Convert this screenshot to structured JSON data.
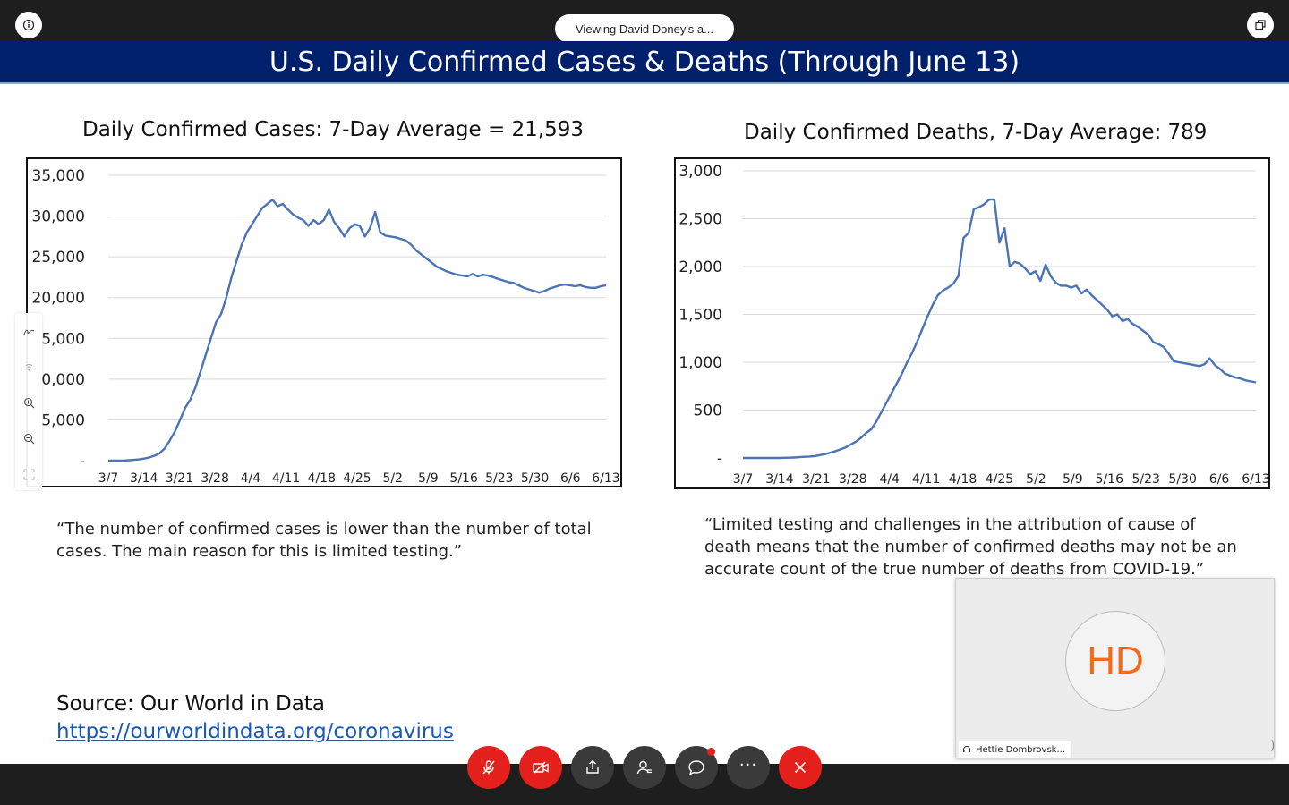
{
  "topbar": {
    "info_icon": "info-icon",
    "viewing_text": "Viewing David Doney's a...",
    "popout_icon": "popout-icon"
  },
  "slide": {
    "title": "U.S. Daily Confirmed Cases & Deaths (Through June 13)",
    "cases_quote": "“The number of confirmed cases is lower than the number of total cases.  The main reason for this is limited testing.”",
    "deaths_quote": "“Limited testing and challenges in the attribution of cause of death means that the number of confirmed deaths may not be an accurate count of the true number of deaths from COVID-19.”",
    "source_label": "Source:  Our World in Data",
    "source_link": "https://ourworldindata.org/coronavirus"
  },
  "chart_data": [
    {
      "type": "line",
      "title": "Daily Confirmed Cases: 7-Day Average = 21,593",
      "x_tick_labels": [
        "3/7",
        "3/14",
        "3/21",
        "3/28",
        "4/4",
        "4/11",
        "4/18",
        "4/25",
        "5/2",
        "5/9",
        "5/16",
        "5/23",
        "5/30",
        "6/6",
        "6/13"
      ],
      "y_tick_labels": [
        "-",
        "5,000",
        "0,000",
        "5,000",
        "20,000",
        "25,000",
        "30,000",
        "35,000"
      ],
      "ylim": [
        0,
        35000
      ],
      "grid": true,
      "color": "#4a74b5",
      "series": [
        {
          "values": [
            0,
            0,
            0,
            10,
            50,
            100,
            150,
            250,
            400,
            600,
            900,
            1500,
            2500,
            3600,
            5000,
            6500,
            7500,
            9000,
            11000,
            13000,
            15000,
            17000,
            18000,
            20000,
            22500,
            24500,
            26500,
            28000,
            29000,
            30000,
            31000,
            31500,
            32000,
            31200,
            31500,
            30800,
            30200,
            29800,
            29500,
            28800,
            29500,
            29000,
            29500,
            30800,
            29300,
            28500,
            27500,
            28500,
            29000,
            28800,
            27500,
            28500,
            30500,
            28000,
            27600,
            27500,
            27400,
            27200,
            27000,
            26500,
            25800,
            25300,
            24800,
            24300,
            23800,
            23500,
            23200,
            23000,
            22800,
            22700,
            22600,
            22900,
            22600,
            22800,
            22700,
            22500,
            22300,
            22100,
            21900,
            21800,
            21500,
            21200,
            21000,
            20800,
            20600,
            20800,
            21100,
            21300,
            21500,
            21600,
            21500,
            21400,
            21500,
            21300,
            21200,
            21200,
            21400,
            21500
          ]
        }
      ]
    },
    {
      "type": "line",
      "title": "Daily Confirmed Deaths, 7-Day Average:  789",
      "x_tick_labels": [
        "3/7",
        "3/14",
        "3/21",
        "3/28",
        "4/4",
        "4/11",
        "4/18",
        "4/25",
        "5/2",
        "5/9",
        "5/16",
        "5/23",
        "5/30",
        "6/6",
        "6/13"
      ],
      "y_tick_labels": [
        "-",
        "500",
        "1,000",
        "1,500",
        "2,000",
        "2,500",
        "3,000"
      ],
      "ylim": [
        0,
        3000
      ],
      "grid": true,
      "color": "#4a74b5",
      "series": [
        {
          "values": [
            0,
            0,
            0,
            0,
            0,
            0,
            0,
            0,
            2,
            3,
            5,
            8,
            12,
            15,
            20,
            30,
            40,
            55,
            70,
            90,
            110,
            140,
            170,
            210,
            260,
            300,
            380,
            480,
            580,
            680,
            780,
            880,
            1000,
            1100,
            1220,
            1350,
            1480,
            1600,
            1700,
            1750,
            1780,
            1820,
            1900,
            2300,
            2350,
            2600,
            2620,
            2650,
            2700,
            2700,
            2250,
            2400,
            2000,
            2050,
            2030,
            1980,
            1920,
            1950,
            1850,
            2020,
            1900,
            1830,
            1800,
            1800,
            1780,
            1800,
            1720,
            1760,
            1700,
            1650,
            1600,
            1550,
            1480,
            1500,
            1430,
            1450,
            1400,
            1370,
            1330,
            1290,
            1210,
            1190,
            1160,
            1090,
            1010,
            1000,
            990,
            980,
            970,
            960,
            980,
            1040,
            970,
            930,
            880,
            860,
            840,
            830,
            810,
            800,
            790
          ]
        }
      ]
    }
  ],
  "annotation_toolbar": [
    "annotate-pen-icon",
    "laser-pointer-icon",
    "zoom-in-icon",
    "zoom-out-icon",
    "fit-screen-icon"
  ],
  "video_tile": {
    "initials": "HD",
    "name": "Hettie Dombrovsk...",
    "initials_color": "#f26b1d"
  },
  "controls": {
    "mute_icon": "mic-muted-icon",
    "video_icon": "video-off-icon",
    "share_icon": "share-icon",
    "participants_icon": "participants-icon",
    "chat_icon": "chat-icon",
    "more_label": "···",
    "leave_icon": "close-icon"
  },
  "colors": {
    "title_band": "#00206b",
    "link": "#1b57b8",
    "danger": "#e3201b"
  }
}
